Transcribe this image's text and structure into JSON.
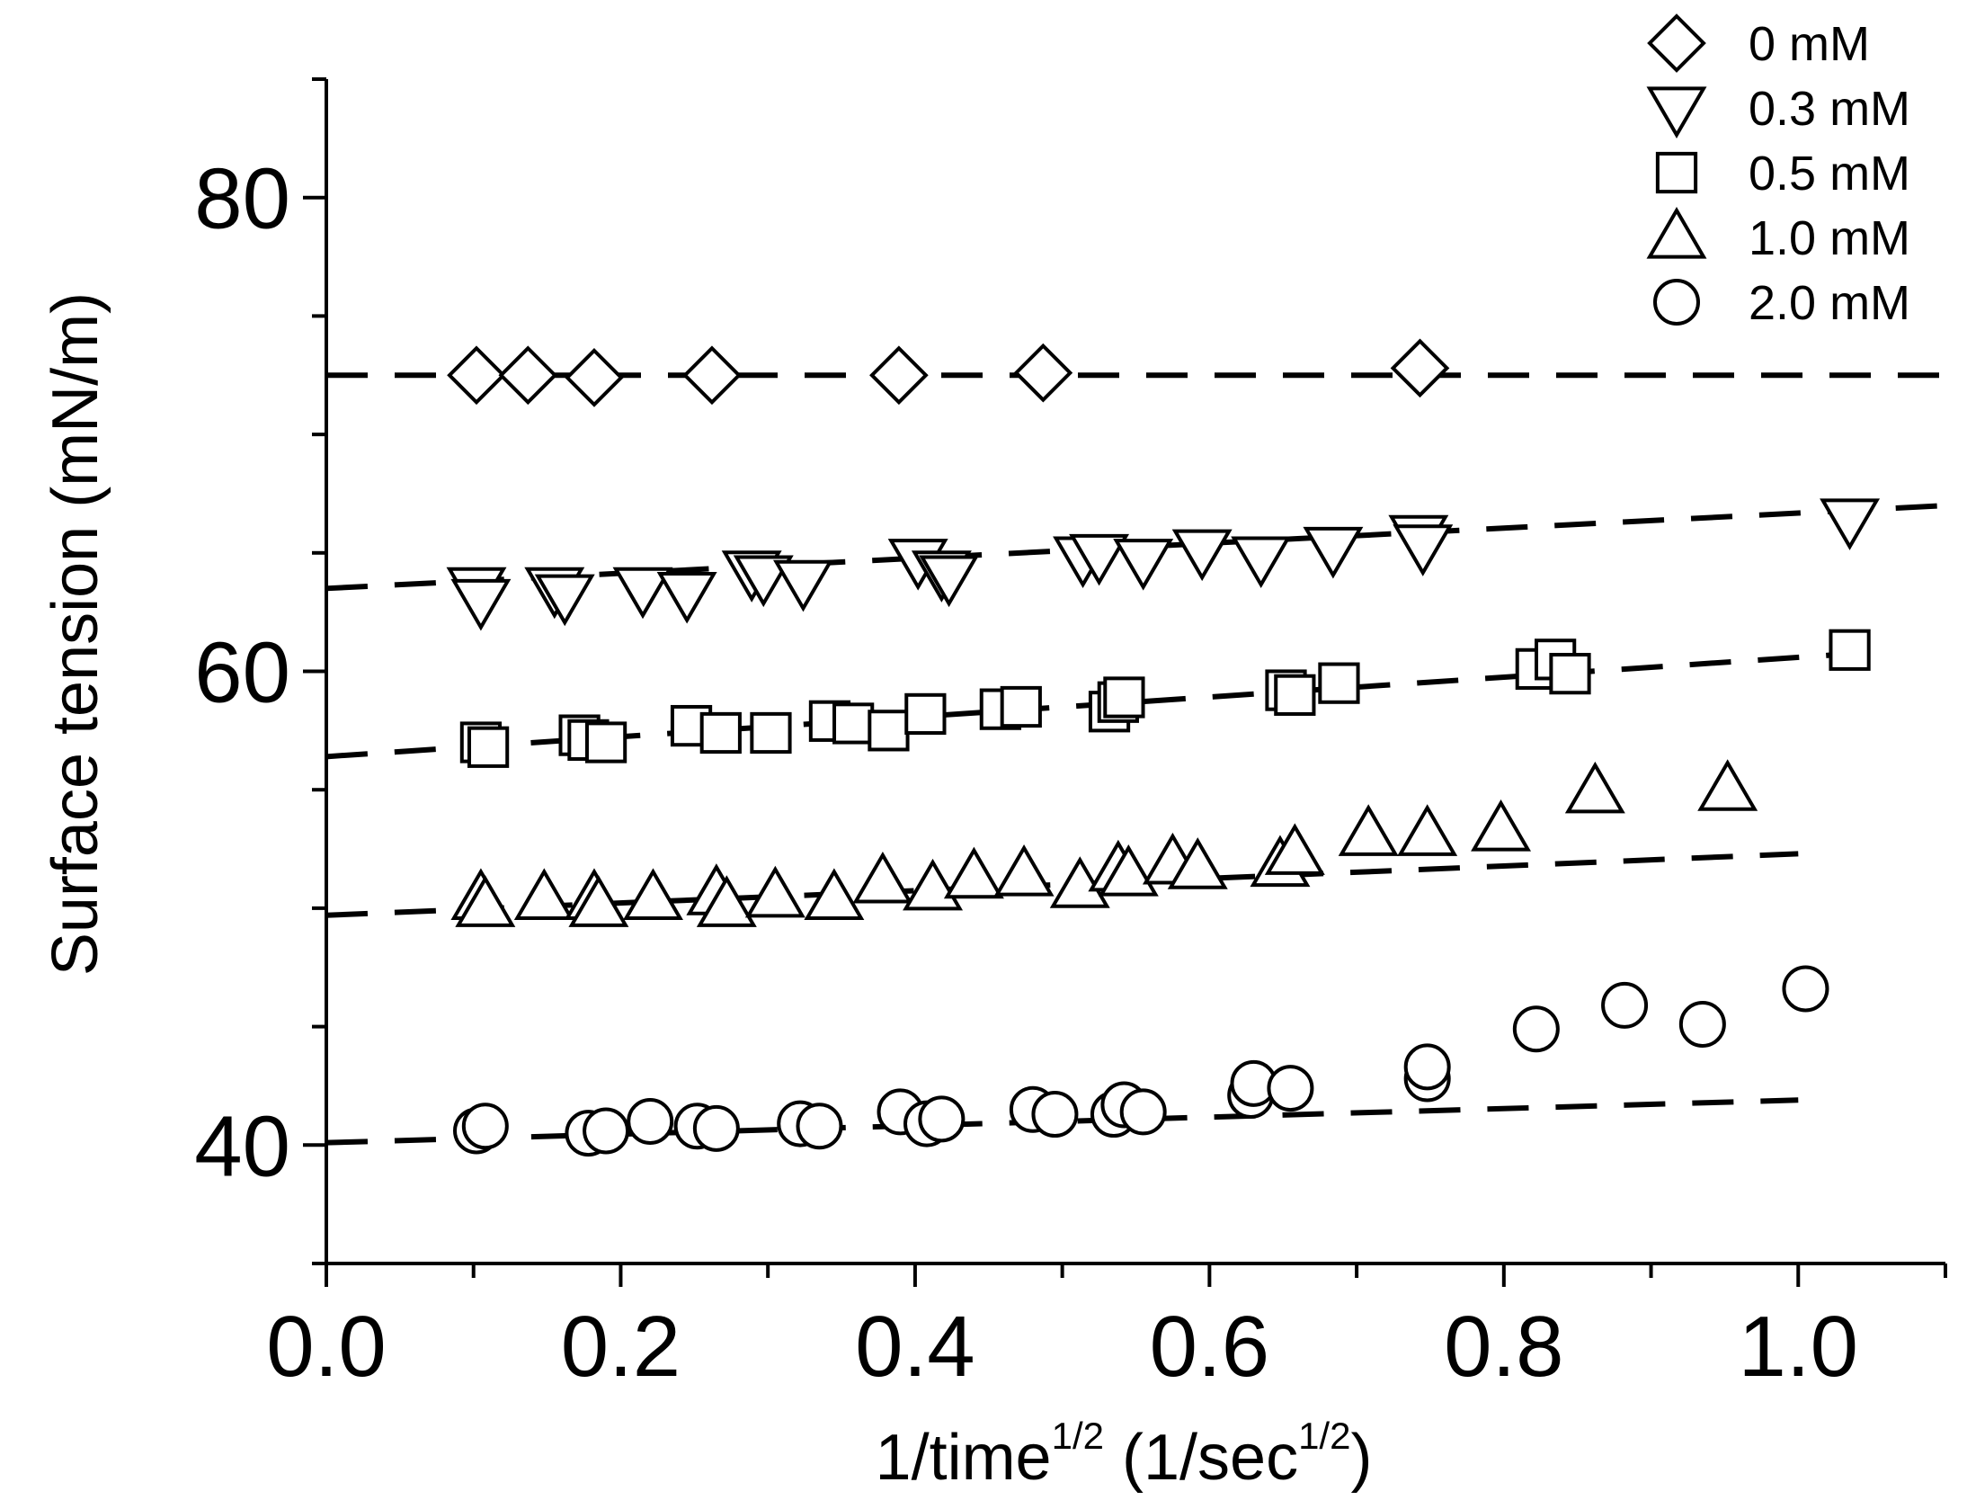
{
  "chart_data": {
    "type": "scatter",
    "xlabel": "1/time",
    "xlabel_sup": "1/2",
    "xlabel_mid": " (1/sec",
    "xlabel_sup2": "1/2",
    "xlabel_end": ")",
    "ylabel": "Surface tension  (mN/m)",
    "xlim": [
      0.0,
      1.1
    ],
    "ylim": [
      35,
      85
    ],
    "xticks": [
      0.0,
      0.2,
      0.4,
      0.6,
      0.8,
      1.0
    ],
    "xtick_labels": [
      "0.0",
      "0.2",
      "0.4",
      "0.6",
      "0.8",
      "1.0"
    ],
    "yticks": [
      40,
      60,
      80
    ],
    "ytick_labels": [
      "40",
      "60",
      "80"
    ],
    "grid": false,
    "legend_position": "top-right",
    "series": [
      {
        "name": "0 mM",
        "marker": "diamond",
        "points": [
          [
            0.102,
            72.5
          ],
          [
            0.137,
            72.5
          ],
          [
            0.182,
            72.4
          ],
          [
            0.262,
            72.5
          ],
          [
            0.389,
            72.5
          ],
          [
            0.487,
            72.6
          ],
          [
            0.743,
            72.8
          ]
        ],
        "fit": [
          [
            0.0,
            72.5
          ],
          [
            1.1,
            72.5
          ]
        ]
      },
      {
        "name": "0.3 mM",
        "marker": "triangle-down",
        "points": [
          [
            0.102,
            63.5
          ],
          [
            0.105,
            63.0
          ],
          [
            0.155,
            63.5
          ],
          [
            0.162,
            63.2
          ],
          [
            0.215,
            63.5
          ],
          [
            0.245,
            63.3
          ],
          [
            0.289,
            64.2
          ],
          [
            0.297,
            64.0
          ],
          [
            0.324,
            63.8
          ],
          [
            0.402,
            64.7
          ],
          [
            0.418,
            64.2
          ],
          [
            0.423,
            64.0
          ],
          [
            0.514,
            64.8
          ],
          [
            0.525,
            64.9
          ],
          [
            0.555,
            64.7
          ],
          [
            0.595,
            65.1
          ],
          [
            0.635,
            64.8
          ],
          [
            0.684,
            65.2
          ],
          [
            0.742,
            65.7
          ],
          [
            0.745,
            65.3
          ],
          [
            1.035,
            66.4
          ]
        ],
        "fit": [
          [
            0.0,
            63.5
          ],
          [
            1.1,
            67.0
          ]
        ]
      },
      {
        "name": "0.5 mM",
        "marker": "square",
        "points": [
          [
            0.105,
            57.0
          ],
          [
            0.11,
            56.8
          ],
          [
            0.172,
            57.3
          ],
          [
            0.178,
            57.1
          ],
          [
            0.19,
            57.0
          ],
          [
            0.248,
            57.7
          ],
          [
            0.268,
            57.4
          ],
          [
            0.302,
            57.4
          ],
          [
            0.342,
            57.9
          ],
          [
            0.358,
            57.8
          ],
          [
            0.382,
            57.5
          ],
          [
            0.407,
            58.2
          ],
          [
            0.458,
            58.4
          ],
          [
            0.472,
            58.5
          ],
          [
            0.532,
            58.3
          ],
          [
            0.538,
            58.7
          ],
          [
            0.542,
            58.9
          ],
          [
            0.652,
            59.2
          ],
          [
            0.658,
            59.0
          ],
          [
            0.688,
            59.5
          ],
          [
            0.822,
            60.1
          ],
          [
            0.835,
            60.5
          ],
          [
            0.845,
            59.9
          ],
          [
            1.035,
            60.9
          ]
        ],
        "fit": [
          [
            0.0,
            56.4
          ],
          [
            1.05,
            60.8
          ]
        ]
      },
      {
        "name": "1.0 mM",
        "marker": "triangle-up",
        "points": [
          [
            0.105,
            50.4
          ],
          [
            0.108,
            50.1
          ],
          [
            0.148,
            50.4
          ],
          [
            0.182,
            50.4
          ],
          [
            0.185,
            50.1
          ],
          [
            0.222,
            50.4
          ],
          [
            0.265,
            50.6
          ],
          [
            0.272,
            50.1
          ],
          [
            0.305,
            50.5
          ],
          [
            0.345,
            50.4
          ],
          [
            0.378,
            51.1
          ],
          [
            0.412,
            50.8
          ],
          [
            0.44,
            51.3
          ],
          [
            0.474,
            51.4
          ],
          [
            0.512,
            50.9
          ],
          [
            0.538,
            51.6
          ],
          [
            0.545,
            51.4
          ],
          [
            0.575,
            51.9
          ],
          [
            0.592,
            51.7
          ],
          [
            0.648,
            51.8
          ],
          [
            0.658,
            52.3
          ],
          [
            0.708,
            53.1
          ],
          [
            0.748,
            53.1
          ],
          [
            0.798,
            53.3
          ],
          [
            0.862,
            54.9
          ],
          [
            0.952,
            55.0
          ]
        ],
        "fit": [
          [
            0.0,
            49.7
          ],
          [
            1.0,
            52.3
          ]
        ]
      },
      {
        "name": "2.0 mM",
        "marker": "circle",
        "points": [
          [
            0.102,
            40.6
          ],
          [
            0.108,
            40.8
          ],
          [
            0.178,
            40.5
          ],
          [
            0.19,
            40.6
          ],
          [
            0.22,
            41.0
          ],
          [
            0.252,
            40.8
          ],
          [
            0.265,
            40.7
          ],
          [
            0.322,
            40.9
          ],
          [
            0.335,
            40.8
          ],
          [
            0.39,
            41.4
          ],
          [
            0.408,
            40.9
          ],
          [
            0.418,
            41.1
          ],
          [
            0.48,
            41.5
          ],
          [
            0.495,
            41.3
          ],
          [
            0.535,
            41.3
          ],
          [
            0.542,
            41.7
          ],
          [
            0.555,
            41.4
          ],
          [
            0.628,
            42.1
          ],
          [
            0.63,
            42.6
          ],
          [
            0.655,
            42.4
          ],
          [
            0.748,
            42.8
          ],
          [
            0.748,
            43.3
          ],
          [
            0.822,
            44.9
          ],
          [
            0.882,
            45.9
          ],
          [
            0.935,
            45.1
          ],
          [
            1.005,
            46.6
          ]
        ],
        "fit": [
          [
            0.0,
            40.1
          ],
          [
            1.0,
            41.9
          ]
        ]
      }
    ]
  }
}
